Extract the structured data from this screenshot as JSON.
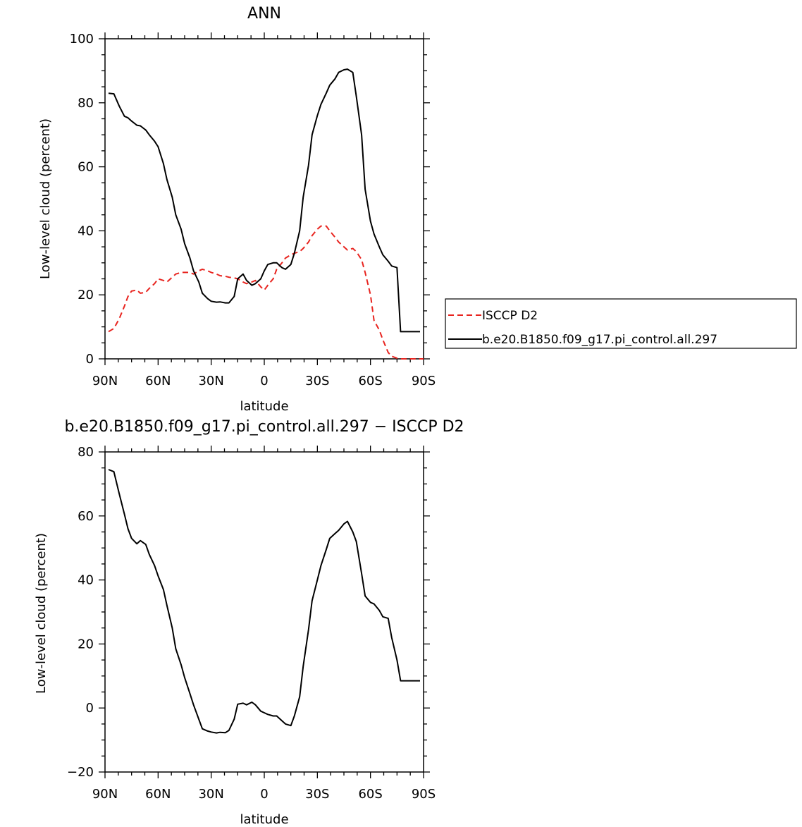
{
  "colors": {
    "obs": "#e8241f",
    "model": "#000000"
  },
  "chart_data": [
    {
      "type": "line",
      "title": "ANN",
      "xlabel": "latitude",
      "ylabel": "Low-level cloud (percent)",
      "xlim": [
        90,
        -90
      ],
      "ylim": [
        0,
        100
      ],
      "x_ticks": [
        90,
        60,
        30,
        0,
        -30,
        -60,
        -90
      ],
      "x_tick_labels": [
        "90N",
        "60N",
        "30N",
        "0",
        "30S",
        "60S",
        "90S"
      ],
      "y_ticks": [
        0,
        20,
        40,
        60,
        80,
        100
      ],
      "y_tick_labels": [
        "0",
        "20",
        "40",
        "60",
        "80",
        "100"
      ],
      "legend": "right",
      "series": [
        {
          "name": "ISCCP D2",
          "style": "dashed",
          "color": "#e8241f",
          "x": [
            88,
            85,
            82,
            79,
            77,
            75,
            72,
            70,
            67,
            65,
            62,
            60,
            57,
            55,
            52,
            50,
            47,
            45,
            42,
            40,
            37,
            35,
            32,
            30,
            27,
            25,
            22,
            20,
            17,
            15,
            12,
            10,
            7,
            5,
            2,
            0,
            -2,
            -5,
            -7,
            -10,
            -12,
            -15,
            -17,
            -20,
            -22,
            -25,
            -27,
            -30,
            -32,
            -35,
            -37,
            -40,
            -42,
            -45,
            -47,
            -50,
            -52,
            -55,
            -57,
            -60,
            -62,
            -65,
            -67,
            -70,
            -72,
            -75,
            -77,
            -80,
            -82,
            -85,
            -87,
            -90
          ],
          "y": [
            8.5,
            9.5,
            12.5,
            16.5,
            19.5,
            21.2,
            21.5,
            20.5,
            20.8,
            22,
            23.5,
            25,
            24.5,
            24,
            25.5,
            26.5,
            27,
            27,
            27,
            26.5,
            27.5,
            28,
            27.5,
            27,
            26.5,
            26,
            25.8,
            25.5,
            25.3,
            25,
            24,
            23.5,
            24,
            24.5,
            22.5,
            21.5,
            23,
            25,
            28,
            30,
            31.5,
            32.5,
            33,
            33.5,
            34.5,
            36.5,
            38.5,
            40.5,
            41.5,
            41.5,
            40,
            38,
            36.5,
            35,
            34,
            34.5,
            33.5,
            31,
            27,
            20,
            12,
            9,
            6,
            2,
            0.8,
            0.2,
            0,
            0,
            0,
            0,
            0,
            0
          ]
        },
        {
          "name": "b.e20.B1850.f09_g17.pi_control.all.297",
          "style": "solid",
          "color": "#000000",
          "x": [
            88,
            85,
            82,
            79,
            77,
            75,
            72,
            70,
            67,
            65,
            62,
            60,
            57,
            55,
            52,
            50,
            47,
            45,
            42,
            40,
            37,
            35,
            32,
            30,
            27,
            25,
            22,
            20,
            17,
            15,
            12,
            10,
            7,
            5,
            2,
            0,
            -2,
            -5,
            -7,
            -10,
            -12,
            -15,
            -17,
            -20,
            -22,
            -25,
            -27,
            -30,
            -32,
            -35,
            -37,
            -40,
            -42,
            -45,
            -47,
            -50,
            -52,
            -55,
            -57,
            -60,
            -62,
            -65,
            -67,
            -70,
            -72,
            -75,
            -77,
            -80,
            -82,
            -85,
            -87,
            -88
          ],
          "y": [
            83,
            82.8,
            79,
            75.8,
            75.3,
            74.3,
            73,
            72.8,
            71.5,
            70,
            68,
            66.3,
            61,
            56,
            50.5,
            45,
            40.5,
            36,
            31.5,
            27.5,
            24,
            20.5,
            18.8,
            18,
            17.7,
            17.8,
            17.5,
            17.5,
            19.5,
            25,
            26.5,
            24.5,
            23,
            23.5,
            25,
            27.5,
            29.5,
            30,
            30,
            28.5,
            28,
            29.5,
            33,
            40,
            50.5,
            60.5,
            70,
            76,
            79.5,
            83,
            85.5,
            87.5,
            89.5,
            90.3,
            90.5,
            89.5,
            82,
            70,
            53,
            43,
            39,
            35,
            32.5,
            30.5,
            29,
            28.5,
            8.5,
            8.5,
            8.5,
            8.5,
            8.5,
            8.5
          ]
        }
      ]
    },
    {
      "type": "line",
      "title": "b.e20.B1850.f09_g17.pi_control.all.297 − ISCCP D2",
      "xlabel": "latitude",
      "ylabel": "Low-level cloud (percent)",
      "xlim": [
        90,
        -90
      ],
      "ylim": [
        -20,
        80
      ],
      "x_ticks": [
        90,
        60,
        30,
        0,
        -30,
        -60,
        -90
      ],
      "x_tick_labels": [
        "90N",
        "60N",
        "30N",
        "0",
        "30S",
        "60S",
        "90S"
      ],
      "y_ticks": [
        -20,
        0,
        20,
        40,
        60,
        80
      ],
      "y_tick_labels": [
        "−20",
        "0",
        "20",
        "40",
        "60",
        "80"
      ],
      "series": [
        {
          "style": "solid",
          "color": "#000000",
          "x": [
            88,
            85,
            82,
            79,
            77,
            75,
            72,
            70,
            67,
            65,
            62,
            60,
            57,
            55,
            52,
            50,
            47,
            45,
            42,
            40,
            37,
            35,
            32,
            30,
            27,
            25,
            22,
            20,
            17,
            15,
            12,
            10,
            7,
            5,
            2,
            0,
            -2,
            -5,
            -7,
            -10,
            -12,
            -15,
            -17,
            -20,
            -22,
            -25,
            -27,
            -30,
            -32,
            -35,
            -37,
            -40,
            -42,
            -45,
            -47,
            -50,
            -52,
            -55,
            -57,
            -60,
            -62,
            -65,
            -67,
            -70,
            -72,
            -75,
            -77,
            -80,
            -82,
            -85,
            -87,
            -88
          ],
          "y": [
            74.5,
            73.8,
            67,
            60.5,
            56,
            53,
            51.3,
            52.3,
            51.1,
            48,
            44.5,
            41.3,
            37,
            32,
            25,
            18.5,
            13.5,
            9.5,
            4.5,
            1,
            -3.5,
            -6.5,
            -7.2,
            -7.5,
            -7.8,
            -7.6,
            -7.7,
            -7,
            -3.5,
            1.2,
            1.5,
            1,
            1.8,
            1,
            -1,
            -1.5,
            -2,
            -2.5,
            -2.5,
            -4,
            -5,
            -5.5,
            -2.5,
            3.5,
            13,
            24.5,
            33.5,
            40,
            44.5,
            49.5,
            53,
            54.5,
            55.5,
            57.5,
            58.3,
            55,
            52,
            42,
            35,
            33,
            32.5,
            30.5,
            28.5,
            28,
            22,
            15,
            8.5,
            8.5,
            8.5,
            8.5,
            8.5,
            8.5
          ]
        }
      ]
    }
  ]
}
